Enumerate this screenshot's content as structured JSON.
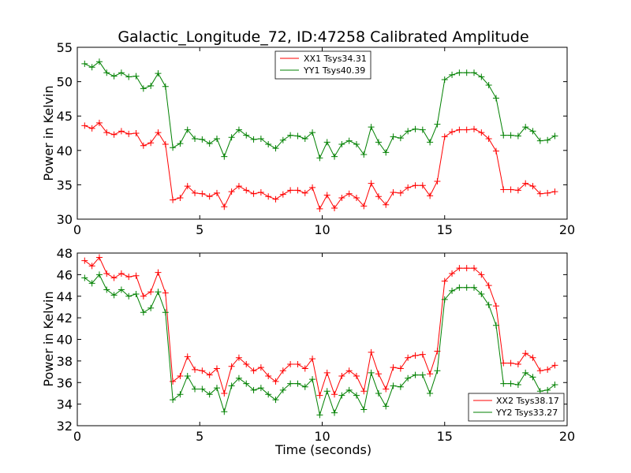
{
  "chart_data": [
    {
      "type": "line",
      "title": "Galactic_Longitude_72, ID:47258 Calibrated Amplitude",
      "xlabel": "",
      "ylabel": "Power in Kelvin",
      "xlim": [
        0,
        20
      ],
      "ylim": [
        30,
        55
      ],
      "xticks": [
        "0",
        "5",
        "10",
        "15",
        "20"
      ],
      "yticks": [
        "30",
        "35",
        "40",
        "45",
        "50",
        "55"
      ],
      "grid": false,
      "legend_position": "top-center",
      "x": [
        0.3,
        0.6,
        0.9,
        1.2,
        1.5,
        1.8,
        2.1,
        2.4,
        2.7,
        3.0,
        3.3,
        3.6,
        3.9,
        4.2,
        4.5,
        4.8,
        5.1,
        5.4,
        5.7,
        6.0,
        6.3,
        6.6,
        6.9,
        7.2,
        7.5,
        7.8,
        8.1,
        8.4,
        8.7,
        9.0,
        9.3,
        9.6,
        9.9,
        10.2,
        10.5,
        10.8,
        11.1,
        11.4,
        11.7,
        12.0,
        12.3,
        12.6,
        12.9,
        13.2,
        13.5,
        13.8,
        14.1,
        14.4,
        14.7,
        15.0,
        15.3,
        15.6,
        15.9,
        16.2,
        16.5,
        16.8,
        17.1,
        17.4,
        17.7,
        18.0,
        18.3,
        18.6,
        18.9,
        19.2,
        19.5
      ],
      "series": [
        {
          "name": "XX1 Tsys34.31",
          "color": "#ff0000",
          "values": [
            43.6,
            43.2,
            44.0,
            42.6,
            42.3,
            42.8,
            42.4,
            42.5,
            40.7,
            41.1,
            42.6,
            40.9,
            32.8,
            33.1,
            34.8,
            33.8,
            33.7,
            33.3,
            33.8,
            31.8,
            34.0,
            34.8,
            34.2,
            33.7,
            33.9,
            33.3,
            32.9,
            33.6,
            34.2,
            34.2,
            33.8,
            34.6,
            31.5,
            33.5,
            31.6,
            33.1,
            33.7,
            33.1,
            31.9,
            35.2,
            33.3,
            32.1,
            33.9,
            33.8,
            34.6,
            34.9,
            34.9,
            33.4,
            35.5,
            42.0,
            42.7,
            43.0,
            43.0,
            43.1,
            42.6,
            41.7,
            39.9,
            34.3,
            34.3,
            34.2,
            35.2,
            34.8,
            33.7,
            33.8,
            34.0
          ]
        },
        {
          "name": "YY1 Tsys40.39",
          "color": "#008000",
          "values": [
            52.6,
            52.1,
            52.9,
            51.3,
            50.8,
            51.3,
            50.7,
            50.8,
            49.0,
            49.4,
            51.2,
            49.3,
            40.4,
            41.0,
            43.0,
            41.7,
            41.6,
            41.0,
            41.7,
            39.1,
            41.9,
            43.0,
            42.2,
            41.6,
            41.7,
            40.9,
            40.3,
            41.5,
            42.2,
            42.1,
            41.7,
            42.6,
            38.9,
            41.2,
            39.1,
            40.9,
            41.4,
            40.9,
            39.4,
            43.4,
            41.2,
            39.7,
            42.0,
            41.8,
            42.8,
            43.1,
            43.0,
            41.2,
            43.8,
            50.3,
            51.0,
            51.3,
            51.3,
            51.3,
            50.7,
            49.5,
            47.6,
            42.2,
            42.2,
            42.1,
            43.4,
            42.8,
            41.4,
            41.5,
            42.1
          ]
        }
      ]
    },
    {
      "type": "line",
      "title": "",
      "xlabel": "Time (seconds)",
      "ylabel": "Power in Kelvin",
      "xlim": [
        0,
        20
      ],
      "ylim": [
        32,
        48
      ],
      "xticks": [
        "0",
        "5",
        "10",
        "15",
        "20"
      ],
      "yticks": [
        "32",
        "34",
        "36",
        "38",
        "40",
        "42",
        "44",
        "46",
        "48"
      ],
      "grid": false,
      "legend_position": "bottom-right",
      "x": [
        0.3,
        0.6,
        0.9,
        1.2,
        1.5,
        1.8,
        2.1,
        2.4,
        2.7,
        3.0,
        3.3,
        3.6,
        3.9,
        4.2,
        4.5,
        4.8,
        5.1,
        5.4,
        5.7,
        6.0,
        6.3,
        6.6,
        6.9,
        7.2,
        7.5,
        7.8,
        8.1,
        8.4,
        8.7,
        9.0,
        9.3,
        9.6,
        9.9,
        10.2,
        10.5,
        10.8,
        11.1,
        11.4,
        11.7,
        12.0,
        12.3,
        12.6,
        12.9,
        13.2,
        13.5,
        13.8,
        14.1,
        14.4,
        14.7,
        15.0,
        15.3,
        15.6,
        15.9,
        16.2,
        16.5,
        16.8,
        17.1,
        17.4,
        17.7,
        18.0,
        18.3,
        18.6,
        18.9,
        19.2,
        19.5
      ],
      "series": [
        {
          "name": "XX2 Tsys38.17",
          "color": "#ff0000",
          "values": [
            47.3,
            46.8,
            47.6,
            46.1,
            45.7,
            46.1,
            45.8,
            45.9,
            44.0,
            44.4,
            46.2,
            44.3,
            36.1,
            36.6,
            38.4,
            37.2,
            37.1,
            36.7,
            37.3,
            35.0,
            37.5,
            38.3,
            37.7,
            37.1,
            37.4,
            36.6,
            36.1,
            37.1,
            37.7,
            37.7,
            37.3,
            38.2,
            34.8,
            36.9,
            34.9,
            36.6,
            37.1,
            36.6,
            35.2,
            38.8,
            36.8,
            35.4,
            37.4,
            37.3,
            38.3,
            38.5,
            38.6,
            36.8,
            38.9,
            45.4,
            46.1,
            46.6,
            46.6,
            46.6,
            46.0,
            45.0,
            43.1,
            37.8,
            37.8,
            37.7,
            38.7,
            38.3,
            37.1,
            37.2,
            37.6
          ]
        },
        {
          "name": "YY2 Tsys33.27",
          "color": "#008000",
          "values": [
            45.7,
            45.2,
            46.0,
            44.6,
            44.1,
            44.6,
            44.0,
            44.2,
            42.5,
            42.9,
            44.4,
            42.5,
            34.4,
            34.9,
            36.6,
            35.4,
            35.4,
            34.9,
            35.5,
            33.3,
            35.7,
            36.4,
            35.9,
            35.3,
            35.5,
            34.9,
            34.4,
            35.3,
            35.9,
            35.9,
            35.6,
            36.3,
            33.0,
            35.2,
            33.2,
            34.8,
            35.3,
            34.8,
            33.5,
            36.9,
            35.0,
            33.8,
            35.7,
            35.6,
            36.4,
            36.7,
            36.7,
            35.0,
            37.1,
            43.7,
            44.5,
            44.8,
            44.8,
            44.8,
            44.2,
            43.2,
            41.3,
            35.9,
            35.9,
            35.8,
            36.9,
            36.5,
            35.2,
            35.3,
            35.8
          ]
        }
      ]
    }
  ]
}
